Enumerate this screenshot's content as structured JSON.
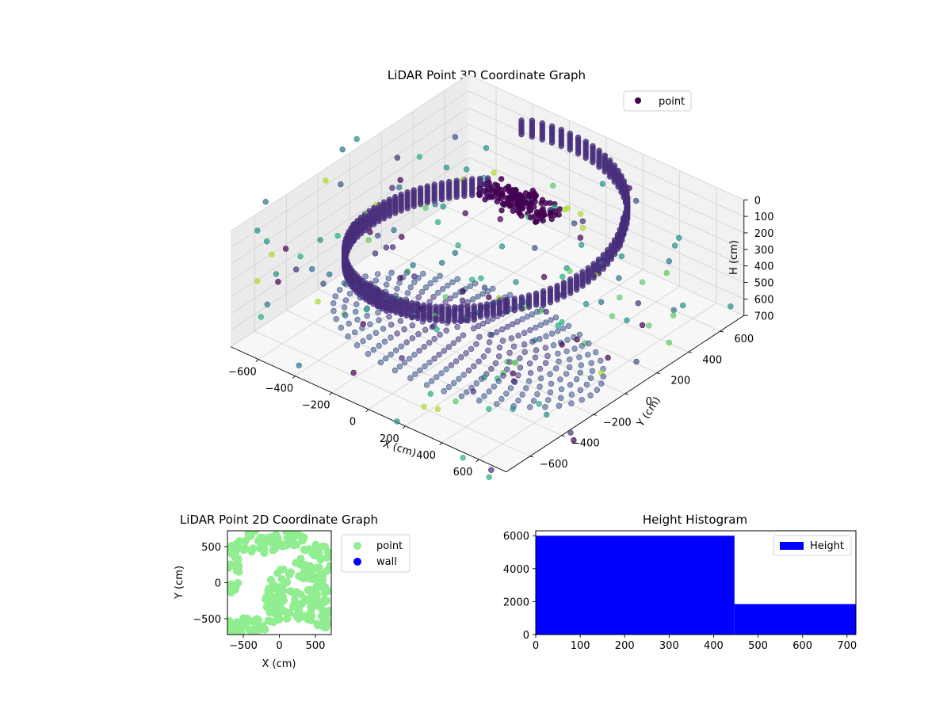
{
  "charts": [
    {
      "type": "scatter",
      "title": "LiDAR Point 3D Coordinate Graph",
      "xlabel": "X (cm)",
      "ylabel": "Y (cm)",
      "zlabel": "H (cm)",
      "xlim": [
        -750,
        750
      ],
      "ylim": [
        -750,
        750
      ],
      "zlim": [
        0,
        700
      ],
      "z_inverted": true,
      "x_ticks": [
        "−600",
        "−400",
        "−200",
        "0",
        "200",
        "400",
        "600"
      ],
      "y_ticks": [
        "−600",
        "−400",
        "−200",
        "0",
        "200",
        "400",
        "600"
      ],
      "z_ticks": [
        "0",
        "100",
        "200",
        "300",
        "400",
        "500",
        "600",
        "700"
      ],
      "grid": true,
      "legend": {
        "placement": "top-right",
        "entries": [
          {
            "label": "point",
            "color": "#440154"
          }
        ]
      },
      "colormap": "viridis",
      "structure": {
        "floor_disk": {
          "radius": 700,
          "height": 680
        },
        "spiral": [
          {
            "angle_deg": 120,
            "radius": 750,
            "height_top": 10,
            "height_bottom": 120
          },
          {
            "angle_deg": 40,
            "radius": 560,
            "height_top": 30,
            "height_bottom": 130
          },
          {
            "angle_deg": -40,
            "radius": 470,
            "height_top": 140,
            "height_bottom": 220
          },
          {
            "angle_deg": -110,
            "radius": 520,
            "height_top": 230,
            "height_bottom": 330
          },
          {
            "angle_deg": -170,
            "radius": 640,
            "height_top": 300,
            "height_bottom": 400
          },
          {
            "angle_deg": -230,
            "radius": 700,
            "height_top": 340,
            "height_bottom": 440
          }
        ],
        "top_cluster": {
          "x": -50,
          "y": 250,
          "height": 60
        }
      }
    },
    {
      "type": "scatter",
      "title": "LiDAR Point 2D Coordinate Graph",
      "xlabel": "X (cm)",
      "ylabel": "Y (cm)",
      "xlim": [
        -720,
        720
      ],
      "ylim": [
        -720,
        720
      ],
      "x_ticks": [
        "−500",
        "0",
        "500"
      ],
      "y_ticks": [
        "−500",
        "0",
        "500"
      ],
      "legend": {
        "placement": "outside-right",
        "entries": [
          {
            "label": "point",
            "color": "#90ee90"
          },
          {
            "label": "wall",
            "color": "#0000ff"
          }
        ]
      },
      "series": [
        {
          "name": "point",
          "color": "#90ee90"
        },
        {
          "name": "wall",
          "color": "#0000ff",
          "points": []
        }
      ]
    },
    {
      "type": "bar",
      "title": "Height Histogram",
      "xlim": [
        0,
        720
      ],
      "ylim": [
        0,
        6300
      ],
      "x_ticks": [
        "0",
        "100",
        "200",
        "300",
        "400",
        "500",
        "600",
        "700"
      ],
      "y_ticks": [
        "0",
        "2000",
        "4000",
        "6000"
      ],
      "legend": {
        "placement": "top-right",
        "entries": [
          {
            "label": "Height",
            "color": "#0000ff"
          }
        ]
      },
      "bins": [
        {
          "x0": 0,
          "x1": 447,
          "count": 6000
        },
        {
          "x0": 447,
          "x1": 720,
          "count": 1850
        }
      ],
      "color": "#0000ff"
    }
  ]
}
